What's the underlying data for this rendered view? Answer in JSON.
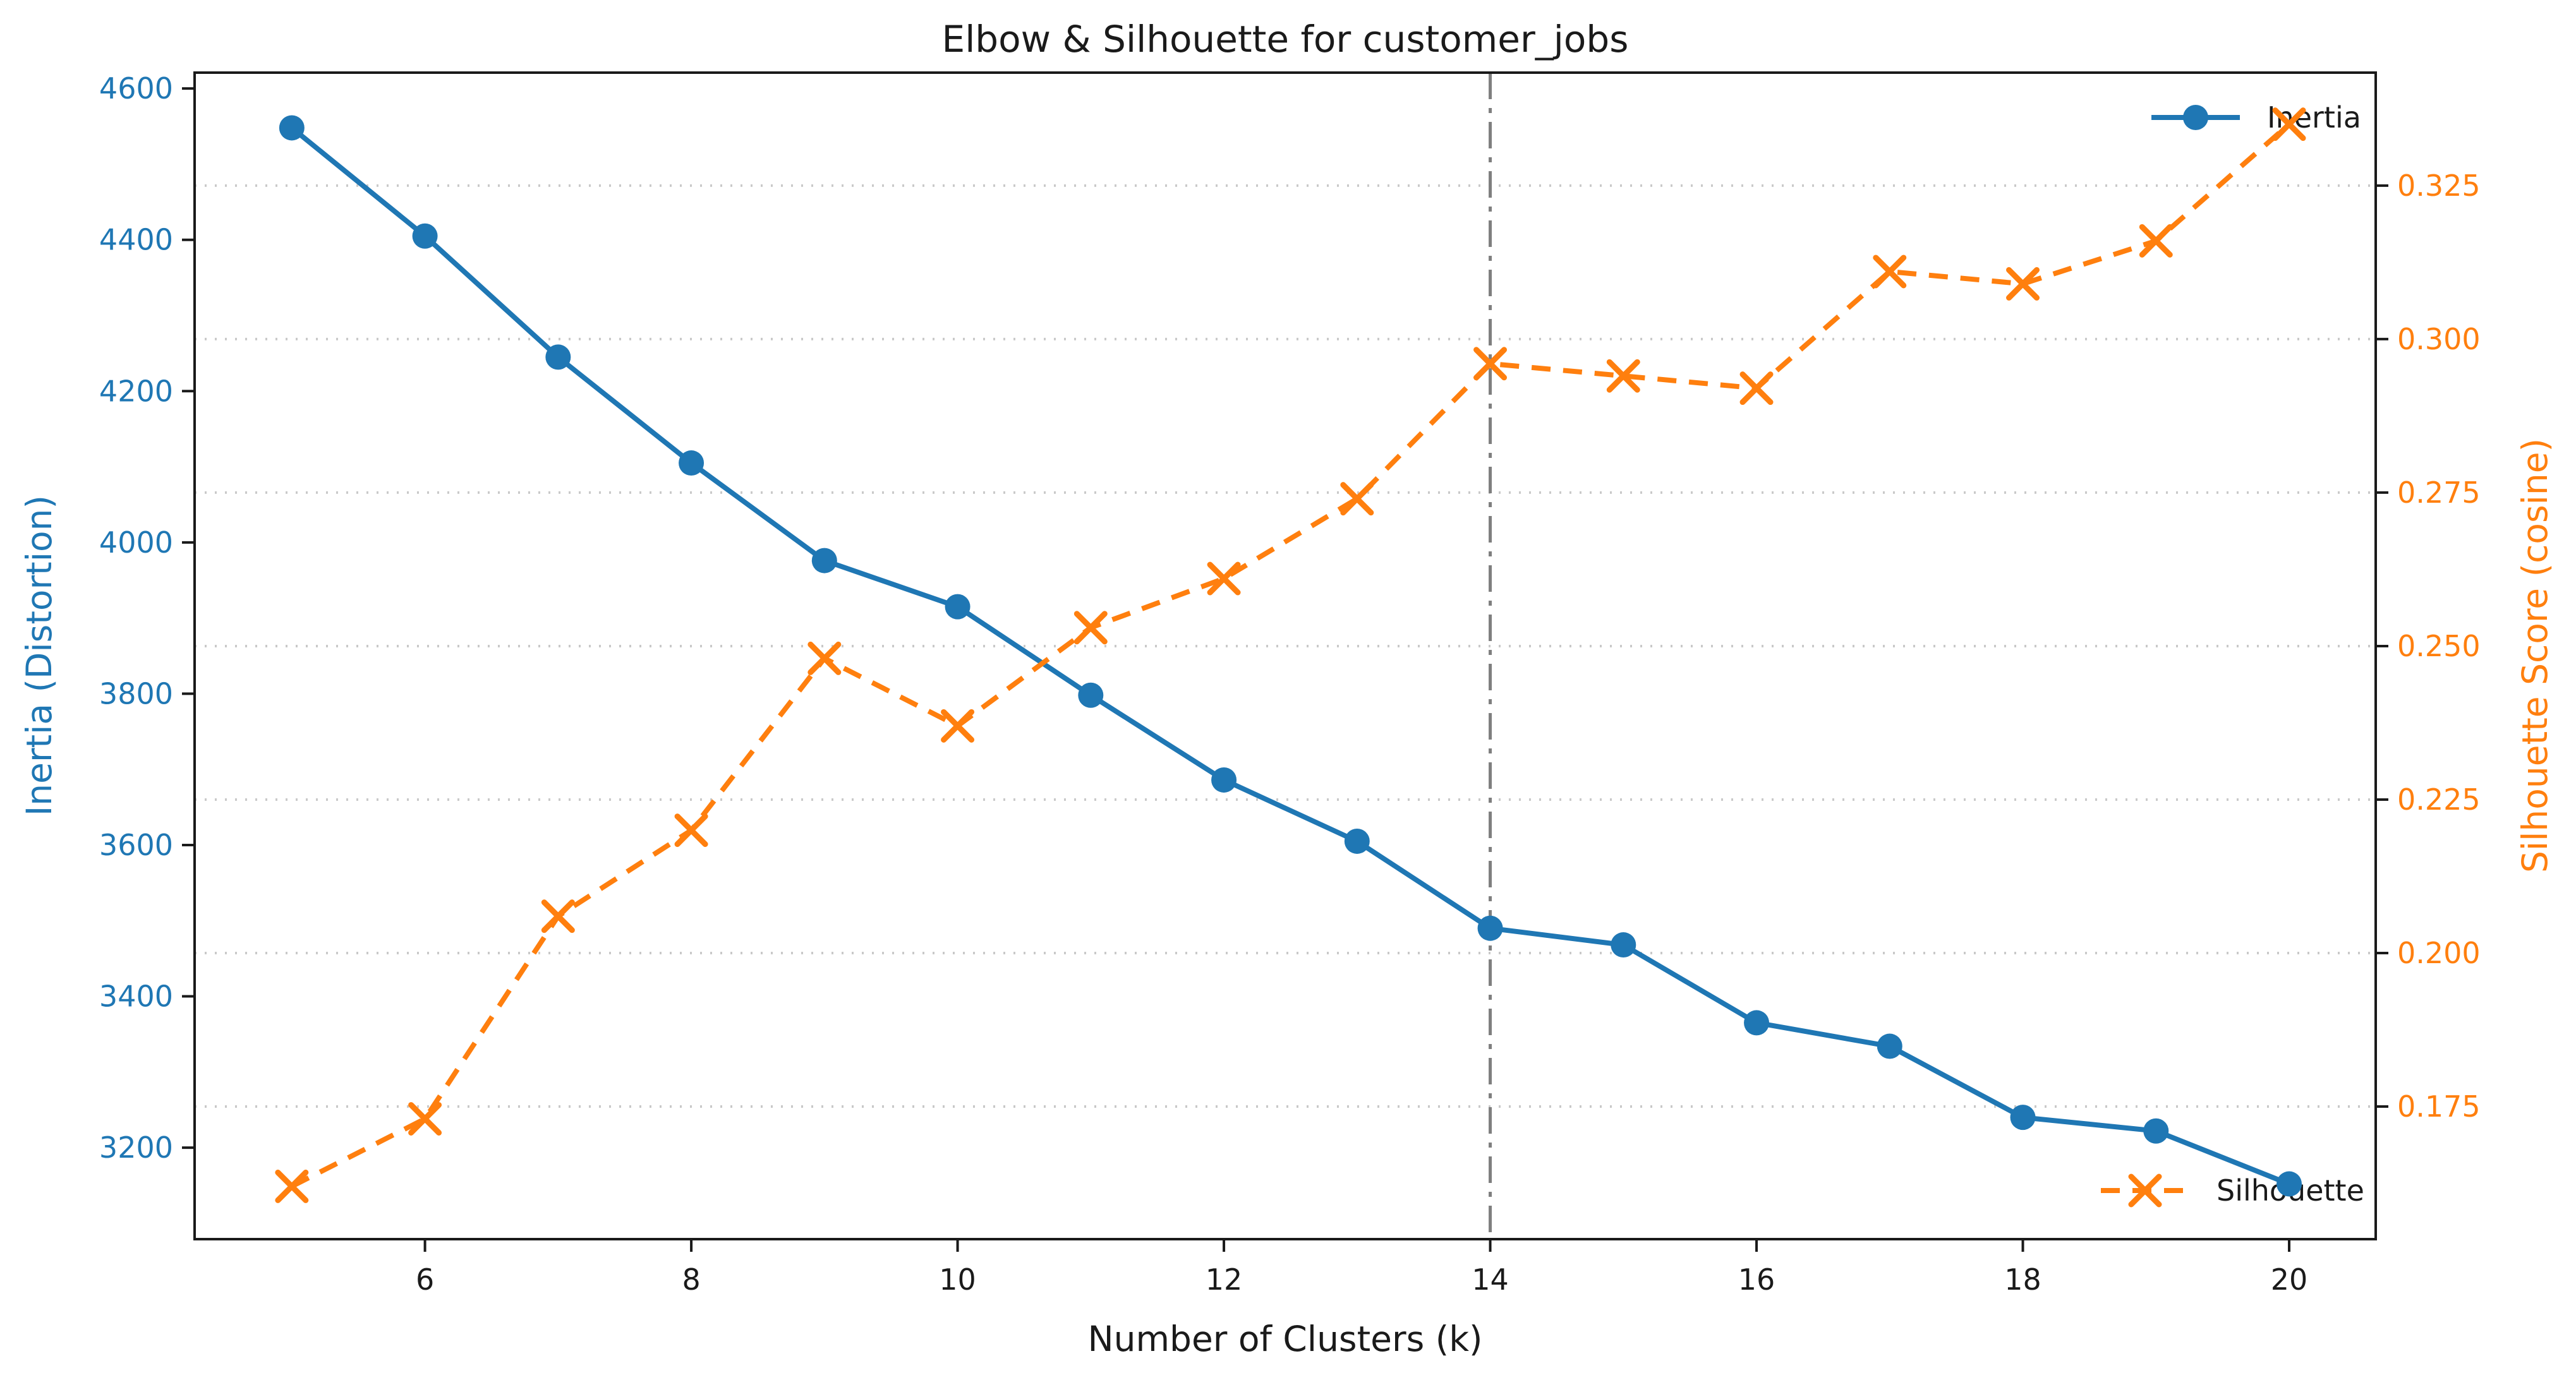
{
  "title": "Elbow & Silhouette for customer_jobs",
  "chart_data": {
    "type": "line",
    "title": "Elbow & Silhouette for customer_jobs",
    "xlabel": "Number of Clusters (k)",
    "x": [
      5,
      6,
      7,
      8,
      9,
      10,
      11,
      12,
      13,
      14,
      15,
      16,
      17,
      18,
      19,
      20
    ],
    "xticks": [
      6,
      8,
      10,
      12,
      14,
      16,
      18,
      20
    ],
    "xlim": [
      4.27,
      20.65
    ],
    "grid": {
      "on": true,
      "which": "horizontal",
      "at": "right_axis_ticks",
      "style": "dotted",
      "color": "#c9c9c9"
    },
    "left_axis": {
      "label": "Inertia (Distortion)",
      "color": "#1f77b4",
      "ticks": [
        3200,
        3400,
        3600,
        3800,
        4000,
        4200,
        4400,
        4600
      ],
      "lim": [
        3079,
        4621
      ]
    },
    "right_axis": {
      "label": "Silhouette Score (cosine)",
      "color": "#ff7f0e",
      "ticks": [
        0.175,
        0.2,
        0.225,
        0.25,
        0.275,
        0.3,
        0.325
      ],
      "lim": [
        0.1534,
        0.3434
      ]
    },
    "series": [
      {
        "name": "Inertia",
        "axis": "left",
        "color": "#1f77b4",
        "line_style": "solid",
        "marker": "circle",
        "values": [
          4548,
          4405,
          4245,
          4105,
          3976,
          3915,
          3798,
          3686,
          3605,
          3490,
          3468,
          3365,
          3334,
          3240,
          3222,
          3152
        ]
      },
      {
        "name": "Silhouette",
        "axis": "right",
        "color": "#ff7f0e",
        "line_style": "dashed",
        "marker": "x",
        "values": [
          0.162,
          0.173,
          0.206,
          0.22,
          0.248,
          0.237,
          0.253,
          0.261,
          0.274,
          0.296,
          0.294,
          0.292,
          0.311,
          0.309,
          0.316,
          0.335
        ]
      }
    ],
    "vline": {
      "x": 14,
      "color": "#7f7f7f",
      "style": "dashdot"
    },
    "legend": [
      {
        "label": "Inertia",
        "position": "top-right"
      },
      {
        "label": "Silhouette",
        "position": "bottom-right"
      }
    ]
  }
}
